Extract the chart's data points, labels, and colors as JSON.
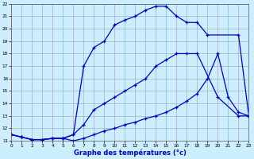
{
  "xlabel": "Graphe des températures (°c)",
  "background_color": "#cceeff",
  "grid_color": "#aaaacc",
  "line_color": "#0000cc",
  "xlim": [
    0,
    23
  ],
  "ylim": [
    11,
    22
  ],
  "curve1_x": [
    0,
    1,
    2,
    3,
    4,
    5,
    6,
    7,
    8,
    9,
    10,
    11,
    12,
    13,
    14,
    15,
    16,
    17,
    18,
    19,
    22,
    23
  ],
  "curve1_y": [
    11.5,
    11.3,
    11.1,
    11.1,
    11.2,
    11.2,
    11.5,
    17.0,
    18.5,
    19.0,
    20.3,
    20.7,
    21.0,
    21.5,
    21.8,
    21.8,
    21.0,
    20.5,
    20.5,
    19.5,
    19.5,
    13.0
  ],
  "curve2_x": [
    0,
    1,
    2,
    3,
    4,
    5,
    6,
    7,
    8,
    9,
    10,
    11,
    12,
    13,
    14,
    15,
    16,
    17,
    18,
    20,
    22,
    23
  ],
  "curve2_y": [
    11.5,
    11.3,
    11.1,
    11.1,
    11.2,
    11.2,
    11.5,
    12.3,
    13.5,
    14.0,
    14.5,
    15.0,
    15.5,
    16.0,
    17.0,
    17.5,
    18.0,
    18.0,
    18.0,
    14.5,
    13.0,
    13.0
  ],
  "curve3_x": [
    0,
    1,
    2,
    3,
    4,
    5,
    6,
    7,
    8,
    9,
    10,
    11,
    12,
    13,
    14,
    15,
    16,
    17,
    18,
    19,
    20,
    21,
    22,
    23
  ],
  "curve3_y": [
    11.5,
    11.3,
    11.1,
    11.1,
    11.2,
    11.2,
    11.0,
    11.2,
    11.5,
    11.8,
    12.0,
    12.3,
    12.5,
    12.8,
    13.0,
    13.3,
    13.7,
    14.2,
    14.8,
    16.0,
    18.0,
    14.5,
    13.3,
    13.0
  ]
}
